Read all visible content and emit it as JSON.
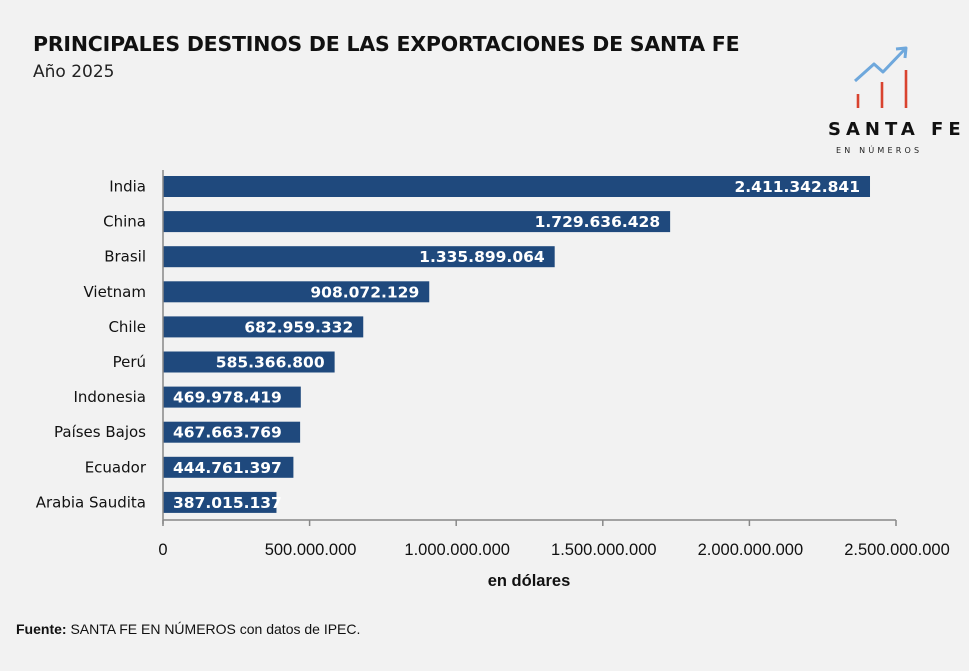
{
  "header": {
    "title": "PRINCIPALES DESTINOS DE LAS EXPORTACIONES DE SANTA FE",
    "subtitle": "Año 2025"
  },
  "logo": {
    "name": "SANTA FE",
    "tagline": "EN NÚMEROS",
    "icon": "trend-arrow-bars-icon",
    "colors": {
      "arrow": "#6fa8dc",
      "bars": "#d9432f"
    }
  },
  "chart_data": {
    "type": "bar",
    "orientation": "horizontal",
    "title": "PRINCIPALES DESTINOS DE LAS EXPORTACIONES DE SANTA FE",
    "subtitle": "Año 2025",
    "categories": [
      "India",
      "China",
      "Brasil",
      "Vietnam",
      "Chile",
      "Perú",
      "Indonesia",
      "Países Bajos",
      "Ecuador",
      "Arabia Saudita"
    ],
    "values": [
      2411342841,
      1729636428,
      1335899064,
      908072129,
      682959332,
      585366800,
      469978419,
      467663769,
      444761397,
      387015137
    ],
    "data_labels": [
      "2.411.342.841",
      "1.729.636.428",
      "1.335.899.064",
      "908.072.129",
      "682.959.332",
      "585.366.800",
      "469.978.419",
      "467.663.769",
      "444.761.397",
      "387.015.137"
    ],
    "xlabel": "en dólares",
    "ylabel": "",
    "xlim": [
      0,
      2500000000
    ],
    "xticks": [
      0,
      500000000,
      1000000000,
      1500000000,
      2000000000,
      2500000000
    ],
    "xtick_labels": [
      "0",
      "500.000.000",
      "1.000.000.000",
      "1.500.000.000",
      "2.000.000.000",
      "2.500.000.000"
    ],
    "grid": false,
    "legend": "none",
    "bar_color": "#1f497d"
  },
  "footer": {
    "source_label": "Fuente:",
    "source_text": " SANTA FE EN NÚMEROS con datos de IPEC."
  }
}
